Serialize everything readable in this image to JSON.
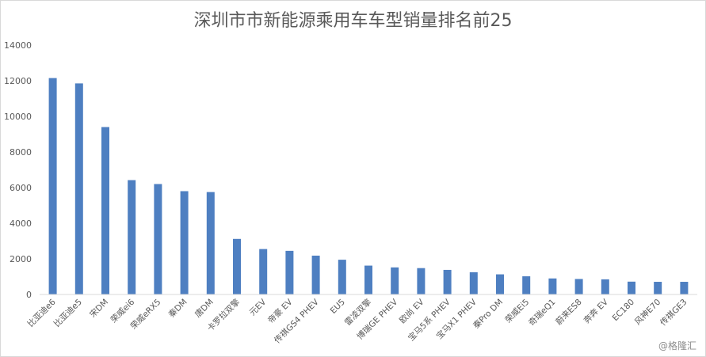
{
  "chart_data": {
    "type": "bar",
    "title": "深圳市市新能源乘用车车型销量排名前25",
    "xlabel": "",
    "ylabel": "",
    "ylim": [
      0,
      14000
    ],
    "yticks": [
      0,
      2000,
      4000,
      6000,
      8000,
      10000,
      12000,
      14000
    ],
    "grid": false,
    "bar_color": "#4e7fc1",
    "categories": [
      "比亚迪e6",
      "比亚迪e5",
      "宋DM",
      "荣威ei6",
      "荣威eRX5",
      "秦DM",
      "唐DM",
      "卡罗拉双擎",
      "元EV",
      "帝豪 EV",
      "传祺GS4 PHEV",
      "EU5",
      "雷凌双擎",
      "博瑞GE PHEV",
      "欧尚 EV",
      "宝马5系 PHEV",
      "宝马X1 PHEV",
      "秦Pro DM",
      "荣威Ei5",
      "奇瑞eQ1",
      "蔚来ES8",
      "奔奔 EV",
      "EC180",
      "风神E70",
      "传祺GE3"
    ],
    "values": [
      12150,
      11850,
      9400,
      6420,
      6200,
      5800,
      5750,
      3120,
      2550,
      2450,
      2180,
      1950,
      1620,
      1520,
      1480,
      1380,
      1250,
      1130,
      1020,
      900,
      870,
      850,
      720,
      710,
      710
    ]
  },
  "watermark": "@格隆汇"
}
